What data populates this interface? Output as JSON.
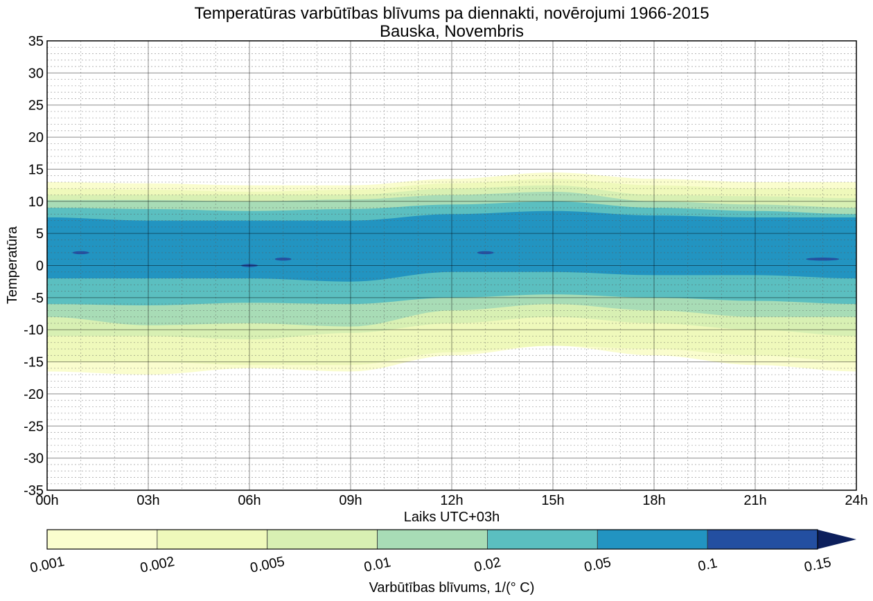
{
  "chart_data": {
    "type": "contour",
    "title": "Temperatūras varbūtības blīvums pa diennakti, novērojumi 1966-2015",
    "subtitle": "Bauska, Novembris",
    "xlabel": "Laiks UTC+03h",
    "ylabel": "Temperatūra",
    "xlim": [
      0,
      24
    ],
    "ylim": [
      -35,
      35
    ],
    "x_ticks": [
      "00h",
      "03h",
      "06h",
      "09h",
      "12h",
      "15h",
      "18h",
      "21h",
      "24h"
    ],
    "y_ticks": [
      "35",
      "30",
      "25",
      "20",
      "15",
      "10",
      "5",
      "0",
      "-5",
      "-10",
      "-15",
      "-20",
      "-25",
      "-30",
      "-35"
    ],
    "grid": true,
    "colorbar": {
      "label": "Varbūtības blīvums, 1/(° C)",
      "ticks": [
        "0.001",
        "0.002",
        "0.005",
        "0.01",
        "0.02",
        "0.05",
        "0.1",
        "0.15"
      ],
      "colors": [
        "#fafdce",
        "#eff9bb",
        "#d8f0b3",
        "#a8dcb6",
        "#5bbfc0",
        "#2294c1",
        "#234fa1",
        "#0c1f5c"
      ],
      "extend": "max"
    },
    "hours": [
      0,
      3,
      6,
      9,
      12,
      15,
      18,
      21,
      24
    ],
    "levels": [
      {
        "level": "0.001",
        "upper": [
          13,
          12.8,
          12.5,
          12.5,
          13.5,
          14.5,
          13.5,
          13,
          13
        ],
        "lower": [
          -16.5,
          -17,
          -16,
          -16.5,
          -14,
          -12.5,
          -14,
          -15.5,
          -16.5
        ]
      },
      {
        "level": "0.002",
        "upper": [
          12,
          11.8,
          11.5,
          11.8,
          12.8,
          13.5,
          12.5,
          12,
          12
        ],
        "lower": [
          -15,
          -15,
          -15.5,
          -15.5,
          -13.5,
          -12.5,
          -13,
          -14,
          -15
        ]
      },
      {
        "level": "0.005",
        "upper": [
          11,
          11,
          11,
          11,
          12,
          12.5,
          11,
          10.8,
          10.5
        ],
        "lower": [
          -11,
          -11,
          -11.5,
          -10.5,
          -9,
          -8,
          -9,
          -10,
          -11
        ]
      },
      {
        "level": "0.01",
        "upper": [
          10.2,
          10.2,
          10,
          10.3,
          11,
          11.5,
          10,
          9.5,
          9
        ],
        "lower": [
          -8,
          -9.3,
          -9,
          -9.5,
          -7,
          -6,
          -7,
          -8,
          -8
        ]
      },
      {
        "level": "0.02",
        "upper": [
          9,
          8.8,
          8.5,
          8.8,
          9.5,
          10,
          9,
          8.5,
          8
        ],
        "lower": [
          -6,
          -6.2,
          -5.8,
          -6,
          -5,
          -4.5,
          -5,
          -5.5,
          -6
        ]
      },
      {
        "level": "0.05",
        "upper": [
          7.5,
          7,
          7,
          7,
          8,
          8.5,
          7.8,
          7.5,
          7.5
        ],
        "lower": [
          -2,
          -2,
          -2,
          -2.5,
          -1,
          -1,
          -1.5,
          -1.5,
          -2
        ]
      }
    ],
    "peaks_above_0.1": [
      {
        "hour": 1,
        "temp": 2
      },
      {
        "hour": 6,
        "temp": 0
      },
      {
        "hour": 7,
        "temp": 1
      },
      {
        "hour": 13,
        "temp": 2
      },
      {
        "hour": 23,
        "temp": 1
      }
    ]
  }
}
